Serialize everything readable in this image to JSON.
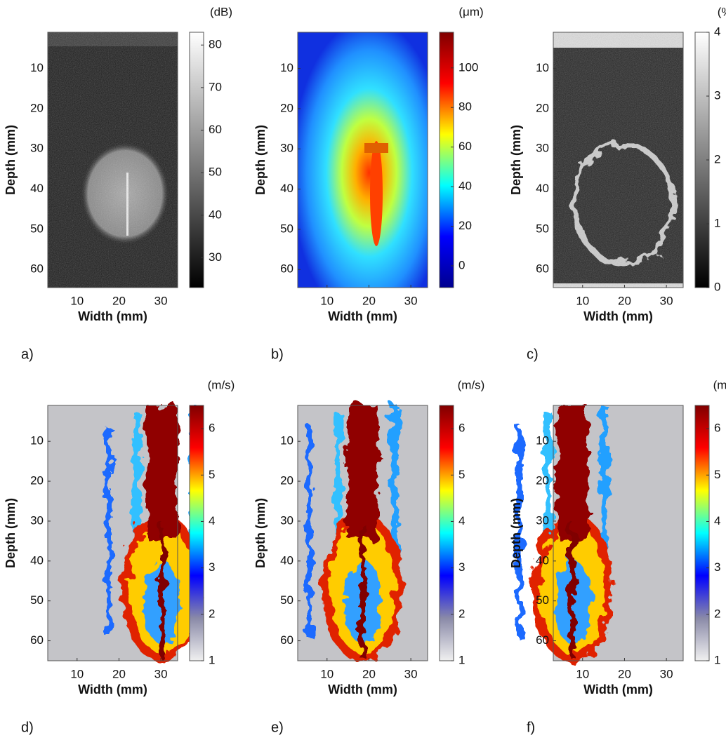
{
  "chart_data": [
    {
      "type": "heatmap",
      "panel_label": "a)",
      "colorbar_unit": "(dB)",
      "colormap": "gray",
      "clim": [
        23,
        83
      ],
      "cticks": [
        30,
        40,
        50,
        60,
        70,
        80
      ],
      "xlabel": "Width (mm)",
      "ylabel": "Depth (mm)",
      "xlim": [
        3,
        34
      ],
      "xticks": [
        10,
        20,
        30
      ],
      "ylim": [
        1,
        64.5
      ],
      "yticks": [
        10,
        20,
        30,
        40,
        50,
        60
      ]
    },
    {
      "type": "heatmap",
      "panel_label": "b)",
      "colorbar_unit": "(μm)",
      "colormap": "jet",
      "clim": [
        -11,
        118
      ],
      "cticks": [
        0,
        20,
        40,
        60,
        80,
        100
      ],
      "xlabel": "Width (mm)",
      "ylabel": "Depth (mm)",
      "xlim": [
        3,
        34
      ],
      "xticks": [
        10,
        20,
        30
      ],
      "ylim": [
        1,
        64.5
      ],
      "yticks": [
        10,
        20,
        30,
        40,
        50,
        60
      ]
    },
    {
      "type": "heatmap",
      "panel_label": "c)",
      "colorbar_unit": "(%)",
      "colormap": "gray",
      "clim": [
        0,
        4
      ],
      "cticks": [
        0,
        1,
        2,
        3,
        4
      ],
      "xlabel": "Width (mm)",
      "ylabel": "Depth (mm)",
      "xlim": [
        3,
        34
      ],
      "xticks": [
        10,
        20,
        30
      ],
      "ylim": [
        1,
        64.5
      ],
      "yticks": [
        10,
        20,
        30,
        40,
        50,
        60
      ]
    },
    {
      "type": "heatmap",
      "panel_label": "d)",
      "colorbar_unit": "(m/s)",
      "colormap": "jet-gray",
      "clim": [
        1,
        6.5
      ],
      "cticks": [
        1,
        2,
        3,
        4,
        5,
        6
      ],
      "xlabel": "Width (mm)",
      "ylabel": "Depth (mm)",
      "xlim": [
        3,
        34
      ],
      "xticks": [
        10,
        20,
        30
      ],
      "ylim": [
        1,
        65
      ],
      "yticks": [
        10,
        20,
        30,
        40,
        50,
        60
      ]
    },
    {
      "type": "heatmap",
      "panel_label": "e)",
      "colorbar_unit": "(m/s)",
      "colormap": "jet-gray",
      "clim": [
        1,
        6.5
      ],
      "cticks": [
        1,
        2,
        3,
        4,
        5,
        6
      ],
      "xlabel": "Width (mm)",
      "ylabel": "Depth (mm)",
      "xlim": [
        3,
        34
      ],
      "xticks": [
        10,
        20,
        30
      ],
      "ylim": [
        1,
        65
      ],
      "yticks": [
        10,
        20,
        30,
        40,
        50,
        60
      ]
    },
    {
      "type": "heatmap",
      "panel_label": "f)",
      "colorbar_unit": "(m/s)",
      "colormap": "jet-gray",
      "clim": [
        1,
        6.5
      ],
      "cticks": [
        1,
        2,
        3,
        4,
        5,
        6
      ],
      "xlabel": "Width (mm)",
      "ylabel": "Depth (mm)",
      "xlim": [
        3,
        34
      ],
      "xticks": [
        10,
        20,
        30
      ],
      "ylim": [
        1,
        65
      ],
      "yticks": [
        10,
        20,
        30,
        40,
        50,
        60
      ]
    }
  ]
}
